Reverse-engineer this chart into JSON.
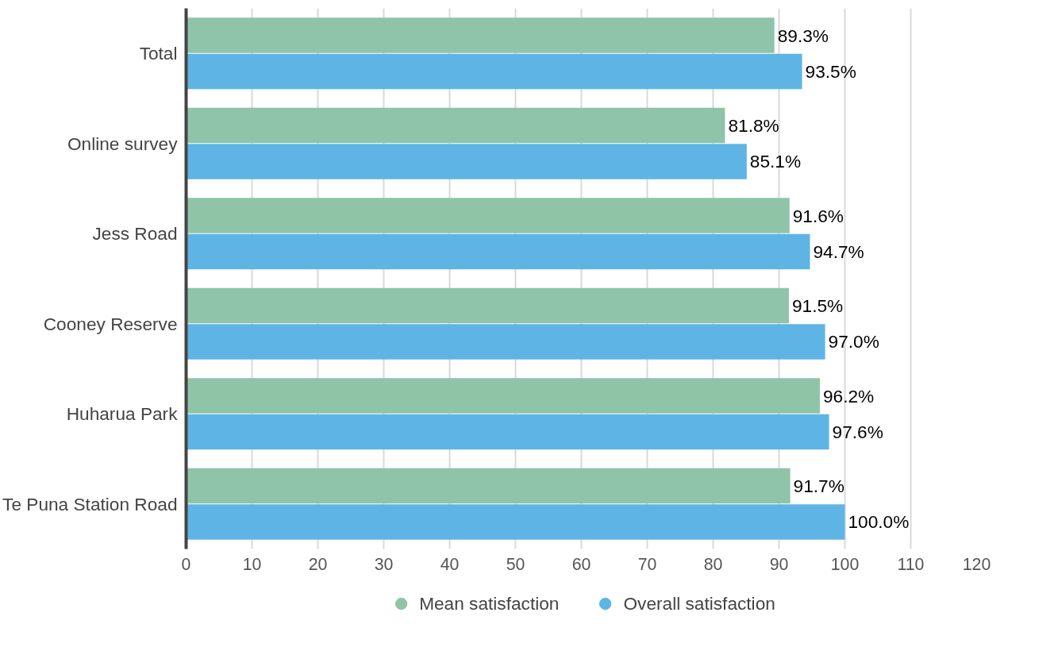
{
  "chart_data": {
    "type": "bar",
    "orientation": "horizontal",
    "categories": [
      "Total",
      "Online survey",
      "Jess Road",
      "Cooney Reserve",
      "Huharua Park",
      "Te Puna Station Road"
    ],
    "series": [
      {
        "name": "Mean satisfaction",
        "color": "#8fc4a8",
        "values": [
          89.3,
          81.8,
          91.6,
          91.5,
          96.2,
          91.7
        ],
        "value_labels": [
          "89.3%",
          "81.8%",
          "91.6%",
          "91.5%",
          "96.2%",
          "91.7%"
        ]
      },
      {
        "name": "Overall satisfaction",
        "color": "#5eb5e5",
        "values": [
          93.5,
          85.1,
          94.7,
          97.0,
          97.6,
          100.0
        ],
        "value_labels": [
          "93.5%",
          "85.1%",
          "94.7%",
          "97.0%",
          "97.6%",
          "100.0%"
        ]
      }
    ],
    "xlim": [
      0,
      120
    ],
    "xticks": [
      0,
      10,
      20,
      30,
      40,
      50,
      60,
      70,
      80,
      90,
      100,
      110,
      120
    ],
    "grid": "x",
    "legend": "bottom"
  }
}
